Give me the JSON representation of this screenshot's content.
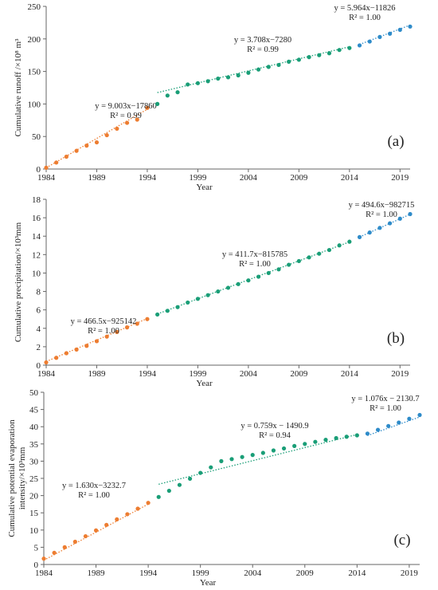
{
  "colors": {
    "seg1": "#ED7D31",
    "seg2": "#1A9E77",
    "seg3": "#2E8BC9",
    "axis": "#666666"
  },
  "chart_data": [
    {
      "type": "scatter",
      "panel_label": "(a)",
      "xlabel": "Year",
      "ylabel": "Cumulative runoff /×10⁸ m³",
      "xlim": [
        1984,
        2020
      ],
      "ylim": [
        0,
        250
      ],
      "xticks": [
        "1984",
        "1989",
        "1994",
        "1999",
        "2004",
        "2009",
        "2014",
        "2019"
      ],
      "yticks": [
        "0",
        "50",
        "100",
        "150",
        "200",
        "250"
      ],
      "grid": false,
      "series": [
        {
          "color": "seg1",
          "x": [
            1984,
            1985,
            1986,
            1987,
            1988,
            1989,
            1990,
            1991,
            1992,
            1993,
            1994
          ],
          "y": [
            2,
            10,
            19,
            28,
            36,
            41,
            52,
            62,
            71,
            76,
            94
          ],
          "fit": {
            "slope": 9.003,
            "intercept": -17860
          },
          "equation": "y = 9.003x−17860",
          "r2": "R² = 0.99"
        },
        {
          "color": "seg2",
          "x": [
            1995,
            1996,
            1997,
            1998,
            1999,
            2000,
            2001,
            2002,
            2003,
            2004,
            2005,
            2006,
            2007,
            2008,
            2009,
            2010,
            2011,
            2012,
            2013,
            2014
          ],
          "y": [
            100,
            113,
            118,
            130,
            132,
            135,
            139,
            141,
            144,
            148,
            153,
            157,
            160,
            165,
            168,
            172,
            175,
            178,
            183,
            186
          ],
          "fit": {
            "slope": 3.708,
            "intercept": -7280
          },
          "equation": "y = 3.708x−7280",
          "r2": "R² = 0.99"
        },
        {
          "color": "seg3",
          "x": [
            2015,
            2016,
            2017,
            2018,
            2019,
            2020
          ],
          "y": [
            190,
            196,
            203,
            208,
            214,
            219
          ],
          "fit": {
            "slope": 5.964,
            "intercept": -11826
          },
          "equation": "y = 5.964x−11826",
          "r2": "R² = 1.00"
        }
      ]
    },
    {
      "type": "scatter",
      "panel_label": "(b)",
      "xlabel": "Year",
      "ylabel": "Cumulative precipitation/×10³mm",
      "xlim": [
        1984,
        2020
      ],
      "ylim": [
        0,
        18
      ],
      "xticks": [
        "1984",
        "1989",
        "1994",
        "1999",
        "2004",
        "2009",
        "2014",
        "2019"
      ],
      "yticks": [
        "0",
        "2",
        "4",
        "6",
        "8",
        "10",
        "12",
        "14",
        "16",
        "18"
      ],
      "grid": false,
      "series": [
        {
          "color": "seg1",
          "x": [
            1984,
            1985,
            1986,
            1987,
            1988,
            1989,
            1990,
            1991,
            1992,
            1993,
            1994
          ],
          "y": [
            0.3,
            0.8,
            1.3,
            1.7,
            2.1,
            2.6,
            3.1,
            3.6,
            4.1,
            4.5,
            5.0
          ],
          "fit": {
            "slope": 0.4665,
            "intercept": -925.142
          },
          "equation": "y = 466.5x−925142",
          "r2": "R² = 1.00"
        },
        {
          "color": "seg2",
          "x": [
            1995,
            1996,
            1997,
            1998,
            1999,
            2000,
            2001,
            2002,
            2003,
            2004,
            2005,
            2006,
            2007,
            2008,
            2009,
            2010,
            2011,
            2012,
            2013,
            2014
          ],
          "y": [
            5.5,
            5.9,
            6.3,
            6.8,
            7.2,
            7.6,
            8.0,
            8.4,
            8.8,
            9.2,
            9.6,
            10.0,
            10.4,
            10.9,
            11.3,
            11.7,
            12.1,
            12.5,
            13.0,
            13.4
          ],
          "fit": {
            "slope": 0.4117,
            "intercept": -815.785
          },
          "equation": "y = 411.7x−815785",
          "r2": "R² = 1.00"
        },
        {
          "color": "seg3",
          "x": [
            2015,
            2016,
            2017,
            2018,
            2019,
            2020
          ],
          "y": [
            13.9,
            14.4,
            14.9,
            15.4,
            15.9,
            16.4
          ],
          "fit": {
            "slope": 0.4946,
            "intercept": -982.715
          },
          "equation": "y = 494.6x−982715",
          "r2": "R² = 1.00"
        }
      ]
    },
    {
      "type": "scatter",
      "panel_label": "(c)",
      "xlabel": "Year",
      "ylabel": "Cumulative potential evaporation intensity/×10³mm",
      "xlim": [
        1984,
        2020
      ],
      "ylim": [
        0,
        50
      ],
      "xticks": [
        "1984",
        "1989",
        "1994",
        "1999",
        "2004",
        "2009",
        "2014",
        "2019"
      ],
      "yticks": [
        "0",
        "5",
        "10",
        "15",
        "20",
        "25",
        "30",
        "35",
        "40",
        "45",
        "50"
      ],
      "grid": false,
      "series": [
        {
          "color": "seg1",
          "x": [
            1984,
            1985,
            1986,
            1987,
            1988,
            1989,
            1990,
            1991,
            1992,
            1993,
            1994
          ],
          "y": [
            1.7,
            3.4,
            5.0,
            6.6,
            8.2,
            9.9,
            11.5,
            13.1,
            14.6,
            16.2,
            17.9
          ],
          "fit": {
            "slope": 1.63,
            "intercept": -3232.7
          },
          "equation": "y = 1.630x−3232.7",
          "r2": "R² = 1.00"
        },
        {
          "color": "seg2",
          "x": [
            1995,
            1996,
            1997,
            1998,
            1999,
            2000,
            2001,
            2002,
            2003,
            2004,
            2005,
            2006,
            2007,
            2008,
            2009,
            2010,
            2011,
            2012,
            2013,
            2014
          ],
          "y": [
            19.6,
            21.4,
            23.1,
            24.9,
            26.6,
            28.2,
            30.0,
            30.6,
            31.2,
            31.8,
            32.4,
            33.1,
            33.7,
            34.4,
            35.0,
            35.6,
            36.2,
            36.7,
            37.1,
            37.5
          ],
          "fit": {
            "slope": 0.759,
            "intercept": -1490.9
          },
          "equation": "y = 0.759x − 1490.9",
          "r2": "R² = 0.94"
        },
        {
          "color": "seg3",
          "x": [
            2015,
            2016,
            2017,
            2018,
            2019,
            2020
          ],
          "y": [
            38.0,
            39.1,
            40.2,
            41.2,
            42.3,
            43.4
          ],
          "fit": {
            "slope": 1.076,
            "intercept": -2130.7
          },
          "equation": "y = 1.076x − 2130.7",
          "r2": "R² = 1.00"
        }
      ]
    }
  ]
}
